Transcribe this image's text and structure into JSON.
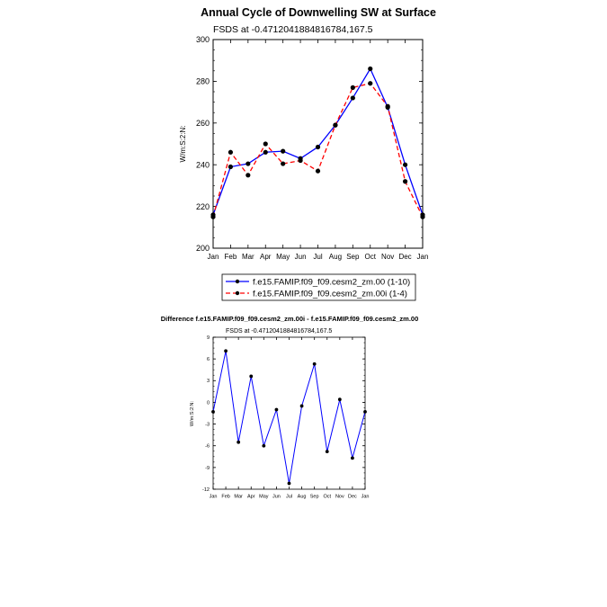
{
  "chart_data": [
    {
      "type": "line",
      "title": "Annual Cycle of Downwelling SW at Surface",
      "subtitle": "FSDS at -0.4712041884816784,167.5",
      "ylabel": "W/m:S:2:N:",
      "xlabel": "",
      "categories": [
        "Jan",
        "Feb",
        "Mar",
        "Apr",
        "May",
        "Jun",
        "Jul",
        "Aug",
        "Sep",
        "Oct",
        "Nov",
        "Dec",
        "Jan"
      ],
      "ylim": [
        200,
        300
      ],
      "yticks": [
        200,
        220,
        240,
        260,
        280,
        300
      ],
      "series": [
        {
          "name": "f.e15.FAMIP.f09_f09.cesm2_zm.00 (1-10)",
          "color": "#0000ff",
          "dash": "solid",
          "values": [
            216,
            239,
            240.5,
            246,
            246.5,
            243,
            248.5,
            259,
            272,
            286,
            267.5,
            240,
            216
          ]
        },
        {
          "name": "f.e15.FAMIP.f09_f09.cesm2_zm.00i (1-4)",
          "color": "#ff0000",
          "dash": "dashed",
          "values": [
            215,
            246,
            235,
            250,
            240.5,
            242,
            237,
            259,
            277,
            279,
            268,
            232,
            215
          ]
        }
      ],
      "legend_position": "bottom"
    },
    {
      "type": "line",
      "title": "Difference f.e15.FAMIP.f09_f09.cesm2_zm.00i - f.e15.FAMIP.f09_f09.cesm2_zm.00",
      "subtitle": "FSDS at -0.4712041884816784,167.5",
      "ylabel": "W/m:S:2:N:",
      "xlabel": "",
      "categories": [
        "Jan",
        "Feb",
        "Mar",
        "Apr",
        "May",
        "Jun",
        "Jul",
        "Aug",
        "Sep",
        "Oct",
        "Nov",
        "Dec",
        "Jan"
      ],
      "ylim": [
        -12,
        9
      ],
      "yticks": [
        -12,
        -9,
        -6,
        -3,
        0,
        3,
        6,
        9
      ],
      "series": [
        {
          "color": "#0000ff",
          "dash": "solid",
          "values": [
            -1.3,
            7.1,
            -5.5,
            3.6,
            -6.0,
            -1.0,
            -11.2,
            -0.5,
            5.3,
            -6.8,
            0.4,
            -7.7,
            -1.3
          ]
        }
      ]
    }
  ]
}
